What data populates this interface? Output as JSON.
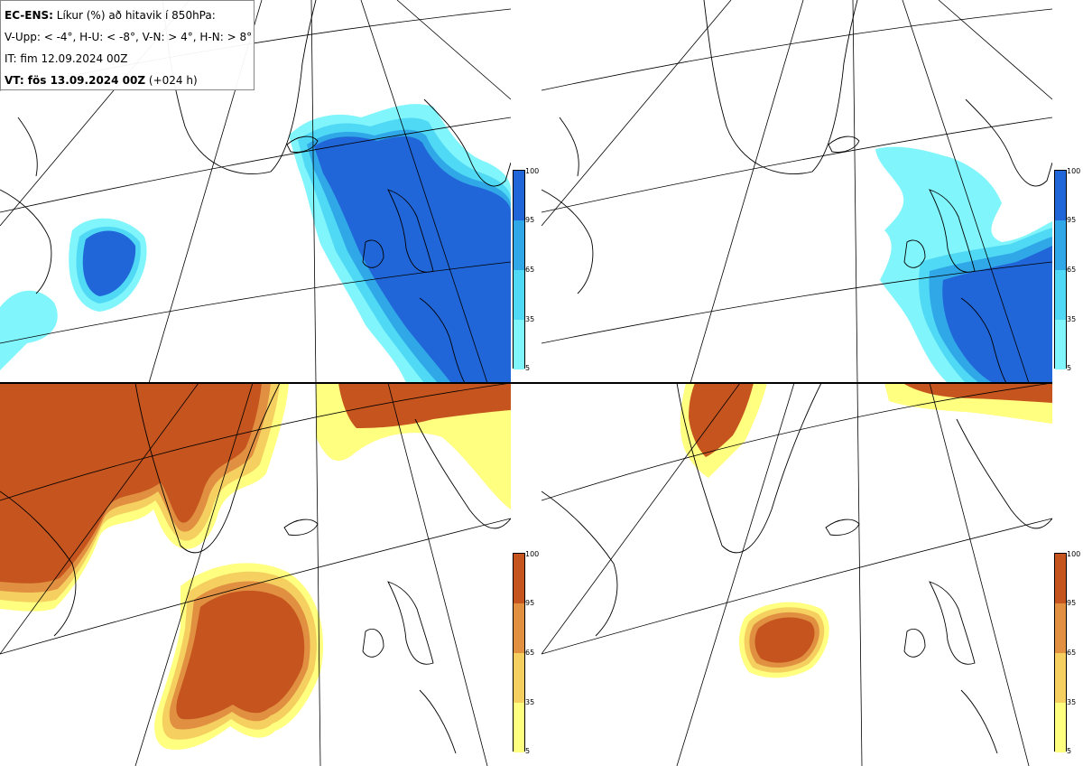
{
  "header": {
    "model": "EC-ENS:",
    "title": "Líkur (%) að hitavik í 850hPa:",
    "thresholds": "V-Upp: < -4°, H-U: < -8°, V-N: > 4°, H-N: > 8°",
    "initial_time": "IT: fim 12.09.2024 00Z",
    "valid_label": "VT: fös 13.09.2024 00Z",
    "lead": "(+024 h)"
  },
  "colorbar": {
    "ticks": [
      "100",
      "95",
      "65",
      "35",
      "5"
    ],
    "cold_colors": [
      "#80f5fb",
      "#4fd9f5",
      "#30a8e8",
      "#2166d8"
    ],
    "warm_colors": [
      "#ffff80",
      "#f5d060",
      "#e09040",
      "#c5541e"
    ]
  },
  "panels": [
    {
      "id": "top-left",
      "variable": "V-Upp"
    },
    {
      "id": "top-right",
      "variable": "H-U"
    },
    {
      "id": "bottom-left",
      "variable": "V-N"
    },
    {
      "id": "bottom-right",
      "variable": "H-N"
    }
  ]
}
